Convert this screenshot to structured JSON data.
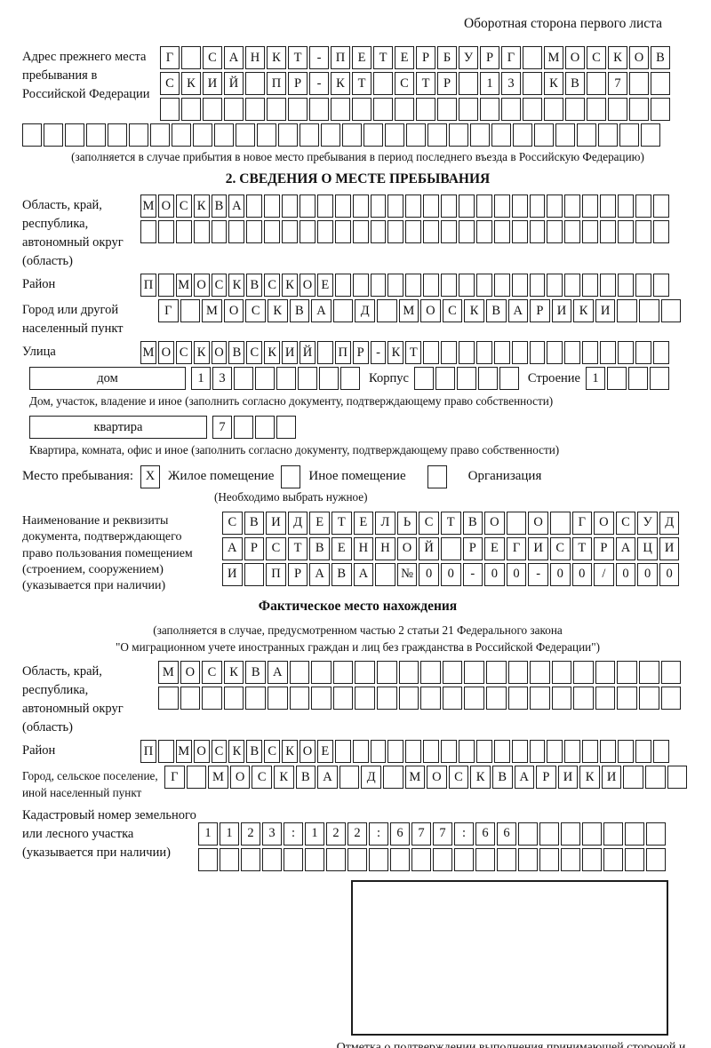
{
  "page": {
    "header_note": "Оборотная сторона первого листа"
  },
  "prev_address": {
    "label": "Адрес прежнего места пребывания в Российской Федерации",
    "row1": {
      "chars": [
        "Г",
        "",
        "С",
        "А",
        "Н",
        "К",
        "Т",
        "-",
        "П",
        "Е",
        "Т",
        "Е",
        "Р",
        "Б",
        "У",
        "Р",
        "Г",
        "",
        "М",
        "О",
        "С",
        "К",
        "О",
        "В"
      ],
      "n": 24
    },
    "row2": {
      "chars": [
        "С",
        "К",
        "И",
        "Й",
        "",
        "П",
        "Р",
        "-",
        "К",
        "Т",
        "",
        "С",
        "Т",
        "Р",
        "",
        "1",
        "3",
        "",
        "К",
        "В",
        "",
        "7"
      ],
      "n": 24
    },
    "row3": {
      "chars": [],
      "n": 24
    },
    "row4": {
      "chars": [],
      "n": 30
    },
    "caption": "(заполняется в случае прибытия в новое место пребывания в период последнего въезда в Российскую Федерацию)"
  },
  "section2": {
    "title": "2. СВЕДЕНИЯ О МЕСТЕ ПРЕБЫВАНИЯ",
    "region": {
      "label": "Область, край, республика, автономный округ (область)",
      "row1": {
        "chars": [
          "М",
          "О",
          "С",
          "К",
          "В",
          "А"
        ],
        "n": 30
      },
      "row2": {
        "chars": [],
        "n": 30
      }
    },
    "district": {
      "label": "Район",
      "row": {
        "chars": [
          "П",
          "",
          "М",
          "О",
          "С",
          "К",
          "В",
          "С",
          "К",
          "О",
          "Е"
        ],
        "n": 30
      }
    },
    "city": {
      "label": "Город или другой населенный пункт",
      "row": {
        "chars": [
          "Г",
          "",
          "М",
          "О",
          "С",
          "К",
          "В",
          "А",
          "",
          "Д",
          "",
          "М",
          "О",
          "С",
          "К",
          "В",
          "А",
          "Р",
          "И",
          "К",
          "И"
        ],
        "n": 24
      }
    },
    "street": {
      "label": "Улица",
      "row": {
        "chars": [
          "М",
          "О",
          "С",
          "К",
          "О",
          "В",
          "С",
          "К",
          "И",
          "Й",
          "",
          "П",
          "Р",
          "-",
          "К",
          "Т"
        ],
        "n": 30
      }
    },
    "house": {
      "box_label": "дом",
      "cells": {
        "chars": [
          "1",
          "3"
        ],
        "n": 8
      },
      "korpus_label": "Корпус",
      "korpus_cells": {
        "chars": [],
        "n": 5
      },
      "stroenie_label": "Строение",
      "stroenie_cells": {
        "chars": [
          "1"
        ],
        "n": 4
      },
      "caption": "Дом, участок, владение и иное (заполнить согласно документу, подтверждающему право собственности)"
    },
    "apartment": {
      "box_label": "квартира",
      "cells": {
        "chars": [
          "7"
        ],
        "n": 4
      },
      "caption": "Квартира, комната, офис и иное (заполнить согласно документу, подтверждающему право собственности)"
    },
    "stay_type": {
      "label": "Место пребывания:",
      "options": [
        {
          "label": "Жилое помещение",
          "mark": "X"
        },
        {
          "label": "Иное помещение",
          "mark": ""
        },
        {
          "label": "Организация",
          "mark": ""
        }
      ],
      "hint": "(Необходимо выбрать нужное)"
    },
    "document": {
      "label": "Наименование и реквизиты документа, подтверждающего право пользования помещением (строением, сооружением) (указывается при наличии)",
      "row1": {
        "chars": [
          "С",
          "В",
          "И",
          "Д",
          "Е",
          "Т",
          "Е",
          "Л",
          "Ь",
          "С",
          "Т",
          "В",
          "О",
          "",
          "О",
          "",
          "Г",
          "О",
          "С",
          "У",
          "Д"
        ],
        "n": 21
      },
      "row2": {
        "chars": [
          "А",
          "Р",
          "С",
          "Т",
          "В",
          "Е",
          "Н",
          "Н",
          "О",
          "Й",
          "",
          "Р",
          "Е",
          "Г",
          "И",
          "С",
          "Т",
          "Р",
          "А",
          "Ц",
          "И"
        ],
        "n": 21
      },
      "row3": {
        "chars": [
          "И",
          "",
          "П",
          "Р",
          "А",
          "В",
          "А",
          "",
          "№",
          "0",
          "0",
          "-",
          "0",
          "0",
          "-",
          "0",
          "0",
          "/",
          "0",
          "0",
          "0"
        ],
        "n": 21
      }
    }
  },
  "actual_location": {
    "title": "Фактическое место нахождения",
    "caption_line1": "(заполняется в случае, предусмотренном частью 2 статьи 21 Федерального закона",
    "caption_line2": "\"О миграционном учете иностранных граждан и лиц без гражданства в Российской Федерации\")",
    "region": {
      "label": "Область, край, республика, автономный округ (область)",
      "row1": {
        "chars": [
          "М",
          "О",
          "С",
          "К",
          "В",
          "А"
        ],
        "n": 24
      },
      "row2": {
        "chars": [],
        "n": 24
      }
    },
    "district": {
      "label": "Район",
      "row": {
        "chars": [
          "П",
          "",
          "М",
          "О",
          "С",
          "К",
          "В",
          "С",
          "К",
          "О",
          "Е"
        ],
        "n": 30
      }
    },
    "city": {
      "label": "Город, сельское поселение, иной населенный пункт",
      "row": {
        "chars": [
          "Г",
          "",
          "М",
          "О",
          "С",
          "К",
          "В",
          "А",
          "",
          "Д",
          "",
          "М",
          "О",
          "С",
          "К",
          "В",
          "А",
          "Р",
          "И",
          "К",
          "И"
        ],
        "n": 24
      }
    },
    "cadastral": {
      "label": "Кадастровый номер земельного или лесного участка (указывается при наличии)",
      "row1": {
        "chars": [
          "1",
          "1",
          "2",
          "3",
          ":",
          "1",
          "2",
          "2",
          ":",
          "6",
          "7",
          "7",
          ":",
          "6",
          "6"
        ],
        "n": 22
      },
      "row2": {
        "chars": [],
        "n": 22
      }
    }
  },
  "stamp": {
    "caption": "Отметка о подтверждении выполнения принимающей стороной и иностранным гражданином или лицом без гражданства действий, необходимых для его постановки на учет по месту пребывания"
  }
}
